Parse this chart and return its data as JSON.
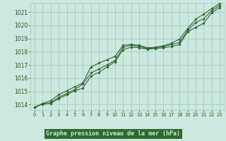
{
  "title": "Graphe pression niveau de la mer (hPa)",
  "bg_color": "#cce8df",
  "grid_color": "#99ccbb",
  "text_color": "#2d5a27",
  "line_color": "#336633",
  "title_bg": "#2d6b2d",
  "title_fg": "#cce8df",
  "xlim": [
    -0.5,
    23.5
  ],
  "ylim": [
    1013.6,
    1021.7
  ],
  "yticks": [
    1014,
    1015,
    1016,
    1017,
    1018,
    1019,
    1020,
    1021
  ],
  "xticks": [
    0,
    1,
    2,
    3,
    4,
    5,
    6,
    7,
    8,
    9,
    10,
    11,
    12,
    13,
    14,
    15,
    16,
    17,
    18,
    19,
    20,
    21,
    22,
    23
  ],
  "series": [
    [
      1013.8,
      1014.05,
      1014.1,
      1014.45,
      1014.75,
      1015.05,
      1015.25,
      1016.15,
      1016.45,
      1016.85,
      1017.25,
      1018.15,
      1018.35,
      1018.3,
      1018.2,
      1018.25,
      1018.3,
      1018.4,
      1018.55,
      1019.5,
      1019.85,
      1020.15,
      1020.95,
      1021.35
    ],
    [
      1013.8,
      1014.05,
      1014.15,
      1014.55,
      1014.85,
      1015.15,
      1015.55,
      1016.4,
      1016.7,
      1017.0,
      1017.35,
      1018.35,
      1018.5,
      1018.4,
      1018.25,
      1018.3,
      1018.4,
      1018.55,
      1018.7,
      1019.6,
      1020.2,
      1020.5,
      1021.1,
      1021.5
    ],
    [
      1013.8,
      1014.1,
      1014.3,
      1014.75,
      1015.05,
      1015.35,
      1015.65,
      1016.85,
      1017.15,
      1017.4,
      1017.65,
      1018.5,
      1018.55,
      1018.5,
      1018.3,
      1018.35,
      1018.45,
      1018.65,
      1018.95,
      1019.75,
      1020.45,
      1020.85,
      1021.25,
      1021.65
    ]
  ]
}
